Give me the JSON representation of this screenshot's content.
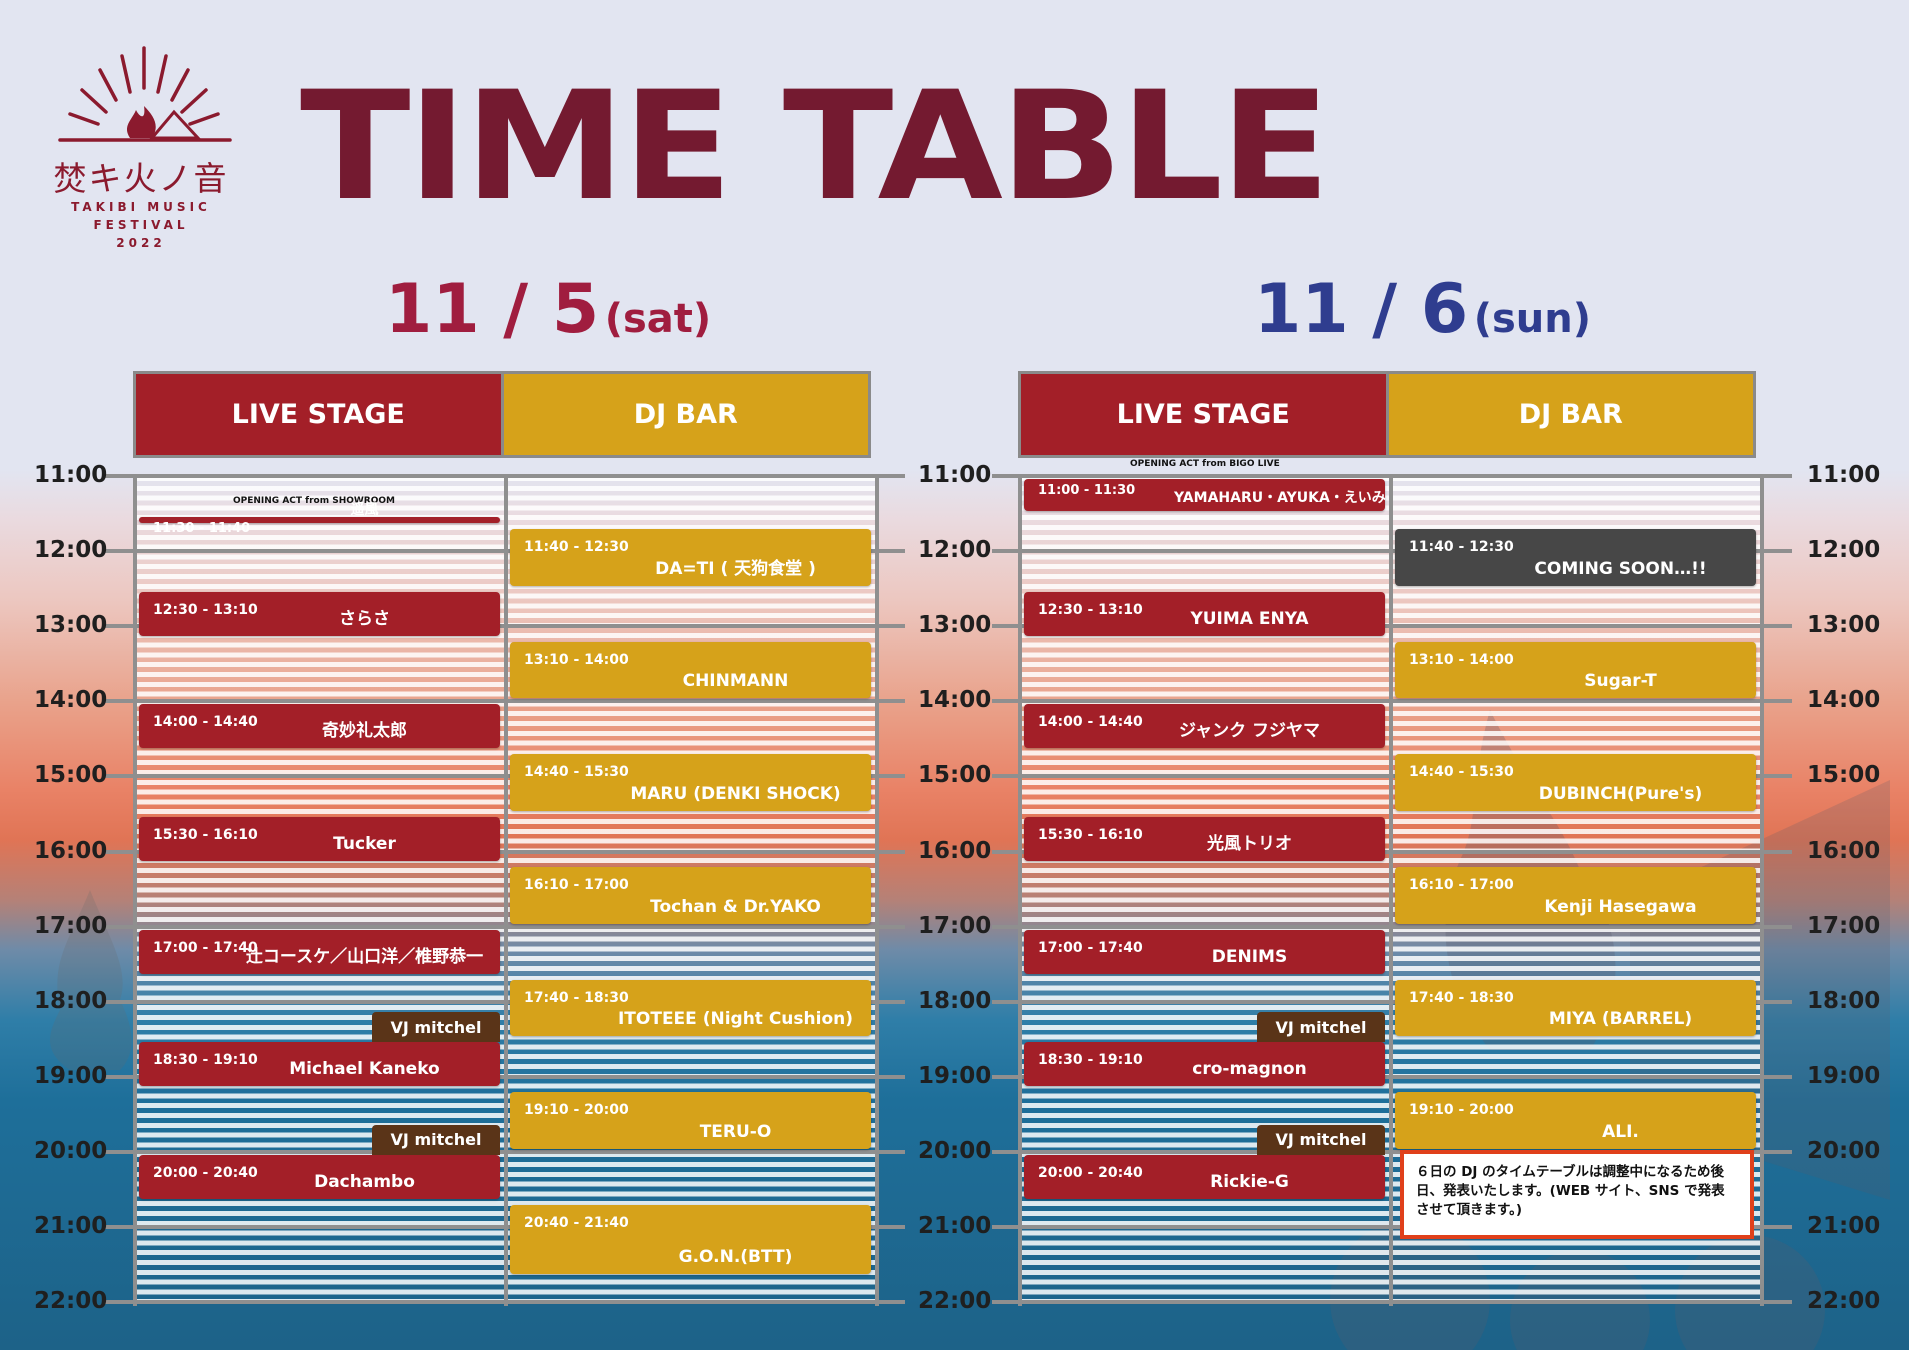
{
  "logo": {
    "jp": "焚キ火ノ音",
    "en_line1": "TAKIBI MUSIC",
    "en_line2": "FESTIVAL",
    "year": "2022"
  },
  "title": "TIME TABLE",
  "colors": {
    "title": "#741a30",
    "day1": "#a01d3f",
    "day2": "#2f3d8f",
    "live": "#a31f28",
    "dj": "#d6a21a",
    "vj": "#5a3418",
    "notice_border": "#e0401b"
  },
  "times": [
    "11:00",
    "12:00",
    "13:00",
    "14:00",
    "15:00",
    "16:00",
    "17:00",
    "18:00",
    "19:00",
    "20:00",
    "21:00",
    "22:00"
  ],
  "days": [
    {
      "date": "11 / 5",
      "weekday": "(sat)",
      "headers": {
        "live": "LIVE STAGE",
        "dj": "DJ BAR"
      },
      "opening": "OPENING ACT from SHOWROOM",
      "live": [
        {
          "time": "11:30 - 11:40",
          "name": "遥風",
          "start": "11:30",
          "end": "11:40",
          "small": true
        },
        {
          "time": "12:30 - 13:10",
          "name": "さらさ",
          "start": "12:30",
          "end": "13:10"
        },
        {
          "time": "14:00 - 14:40",
          "name": "奇妙礼太郎",
          "start": "14:00",
          "end": "14:40"
        },
        {
          "time": "15:30 - 16:10",
          "name": "Tucker",
          "start": "15:30",
          "end": "16:10"
        },
        {
          "time": "17:00 - 17:40",
          "name": "辻コースケ／山口洋／椎野恭一",
          "start": "17:00",
          "end": "17:40"
        },
        {
          "time": "18:30 - 19:10",
          "name": "Michael Kaneko",
          "start": "18:30",
          "end": "19:10",
          "vj": "VJ mitchel"
        },
        {
          "time": "20:00 - 20:40",
          "name": "Dachambo",
          "start": "20:00",
          "end": "20:40",
          "vj": "VJ mitchel"
        }
      ],
      "dj": [
        {
          "time": "11:40 - 12:30",
          "name": "DA=TI ( 天狗食堂 )",
          "start": "11:40",
          "end": "12:30"
        },
        {
          "time": "13:10 - 14:00",
          "name": "CHINMANN",
          "start": "13:10",
          "end": "14:00"
        },
        {
          "time": "14:40 - 15:30",
          "name": "MARU (DENKI SHOCK)",
          "start": "14:40",
          "end": "15:30"
        },
        {
          "time": "16:10 - 17:00",
          "name": "Tochan & Dr.YAKO",
          "start": "16:10",
          "end": "17:00"
        },
        {
          "time": "17:40 - 18:30",
          "name": "ITOTEEE (Night Cushion)",
          "start": "17:40",
          "end": "18:30"
        },
        {
          "time": "19:10 - 20:00",
          "name": "TERU-O",
          "start": "19:10",
          "end": "20:00"
        },
        {
          "time": "20:40 - 21:40",
          "name": "G.O.N.(BTT)",
          "start": "20:40",
          "end": "21:40"
        }
      ]
    },
    {
      "date": "11 / 6",
      "weekday": "(sun)",
      "headers": {
        "live": "LIVE STAGE",
        "dj": "DJ BAR"
      },
      "opening": "OPENING ACT from BIGO LIVE",
      "live": [
        {
          "time": "11:00 - 11:30",
          "name": "YAMAHARU・AYUKA・えいみ",
          "start": "11:00",
          "end": "11:30",
          "small": true
        },
        {
          "time": "12:30 - 13:10",
          "name": "YUIMA ENYA",
          "start": "12:30",
          "end": "13:10"
        },
        {
          "time": "14:00 - 14:40",
          "name": "ジャンク フジヤマ",
          "start": "14:00",
          "end": "14:40"
        },
        {
          "time": "15:30 - 16:10",
          "name": "光風トリオ",
          "start": "15:30",
          "end": "16:10"
        },
        {
          "time": "17:00 - 17:40",
          "name": "DENIMS",
          "start": "17:00",
          "end": "17:40"
        },
        {
          "time": "18:30 - 19:10",
          "name": "cro-magnon",
          "start": "18:30",
          "end": "19:10",
          "vj": "VJ mitchel"
        },
        {
          "time": "20:00 - 20:40",
          "name": "Rickie-G",
          "start": "20:00",
          "end": "20:40",
          "vj": "VJ mitchel"
        }
      ],
      "dj": [
        {
          "time": "11:40 - 12:30",
          "name": "COMING SOON…!!",
          "start": "11:40",
          "end": "12:30",
          "gray": true
        },
        {
          "time": "13:10 - 14:00",
          "name": "Sugar-T",
          "start": "13:10",
          "end": "14:00"
        },
        {
          "time": "14:40 - 15:30",
          "name": "DUBINCH(Pure's)",
          "start": "14:40",
          "end": "15:30"
        },
        {
          "time": "16:10 - 17:00",
          "name": "Kenji Hasegawa",
          "start": "16:10",
          "end": "17:00"
        },
        {
          "time": "17:40 - 18:30",
          "name": "MIYA (BARREL)",
          "start": "17:40",
          "end": "18:30"
        },
        {
          "time": "19:10 - 20:00",
          "name": "ALI.",
          "start": "19:10",
          "end": "20:00"
        }
      ],
      "notice": "６日の DJ のタイムテーブルは調整中になるため後日、発表いたします。(WEB サイト、SNS で発表させて頂きます。)"
    }
  ]
}
